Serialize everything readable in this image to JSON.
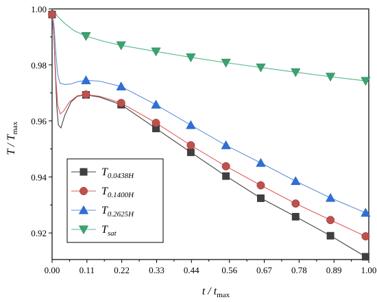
{
  "chart_data": {
    "type": "line",
    "xlabel": {
      "main": "t / t",
      "sub": "max"
    },
    "ylabel": {
      "main": "T / T",
      "sub": "max"
    },
    "xlim": [
      0.0,
      1.0
    ],
    "ylim": [
      0.9105,
      1.0
    ],
    "x_ticks": [
      "0.00",
      "0.11",
      "0.22",
      "0.33",
      "0.44",
      "0.56",
      "0.67",
      "0.78",
      "0.89",
      "1.00"
    ],
    "y_ticks": [
      "0.92",
      "0.94",
      "0.96",
      "0.98",
      "1.00"
    ],
    "grid": false,
    "legend_position": "bottom-left",
    "series": [
      {
        "name_main": "T",
        "name_sub": "0.0438H",
        "marker": "square",
        "color": "#404040",
        "line_color": "#404040",
        "markers": [
          [
            0.0,
            0.998
          ],
          [
            0.107,
            0.9693
          ],
          [
            0.218,
            0.9658
          ],
          [
            0.328,
            0.9573
          ],
          [
            0.438,
            0.9488
          ],
          [
            0.549,
            0.9403
          ],
          [
            0.659,
            0.9324
          ],
          [
            0.769,
            0.9258
          ],
          [
            0.879,
            0.919
          ],
          [
            0.99,
            0.9115
          ]
        ],
        "curve": [
          [
            0.0,
            0.998
          ],
          [
            0.005,
            0.992
          ],
          [
            0.01,
            0.978
          ],
          [
            0.015,
            0.965
          ],
          [
            0.02,
            0.9585
          ],
          [
            0.028,
            0.9575
          ],
          [
            0.04,
            0.962
          ],
          [
            0.06,
            0.9668
          ],
          [
            0.08,
            0.9688
          ],
          [
            0.107,
            0.9693
          ],
          [
            0.15,
            0.9685
          ],
          [
            0.218,
            0.9658
          ],
          [
            0.328,
            0.9573
          ],
          [
            0.438,
            0.9488
          ],
          [
            0.549,
            0.9403
          ],
          [
            0.659,
            0.9324
          ],
          [
            0.769,
            0.9258
          ],
          [
            0.879,
            0.919
          ],
          [
            0.99,
            0.9115
          ]
        ]
      },
      {
        "name_main": "T",
        "name_sub": "0.1400H",
        "marker": "circle",
        "color": "#c0504d",
        "line_color": "#e05a5a",
        "markers": [
          [
            0.0,
            0.998
          ],
          [
            0.107,
            0.9694
          ],
          [
            0.218,
            0.9664
          ],
          [
            0.328,
            0.9593
          ],
          [
            0.438,
            0.9513
          ],
          [
            0.549,
            0.9438
          ],
          [
            0.659,
            0.937
          ],
          [
            0.769,
            0.9305
          ],
          [
            0.879,
            0.9246
          ],
          [
            0.99,
            0.9188
          ]
        ],
        "curve": [
          [
            0.0,
            0.998
          ],
          [
            0.006,
            0.99
          ],
          [
            0.012,
            0.975
          ],
          [
            0.018,
            0.9655
          ],
          [
            0.026,
            0.9625
          ],
          [
            0.036,
            0.9635
          ],
          [
            0.055,
            0.9668
          ],
          [
            0.08,
            0.969
          ],
          [
            0.107,
            0.9694
          ],
          [
            0.15,
            0.9688
          ],
          [
            0.218,
            0.9664
          ],
          [
            0.328,
            0.9593
          ],
          [
            0.438,
            0.9513
          ],
          [
            0.549,
            0.9438
          ],
          [
            0.659,
            0.937
          ],
          [
            0.769,
            0.9305
          ],
          [
            0.879,
            0.9246
          ],
          [
            0.99,
            0.9188
          ]
        ]
      },
      {
        "name_main": "T",
        "name_sub": "0.2625H",
        "marker": "triangle-up",
        "color": "#2f6fd8",
        "line_color": "#5a8ee0",
        "markers": [
          [
            0.107,
            0.9745
          ],
          [
            0.218,
            0.9723
          ],
          [
            0.328,
            0.9658
          ],
          [
            0.438,
            0.9585
          ],
          [
            0.549,
            0.9513
          ],
          [
            0.659,
            0.945
          ],
          [
            0.769,
            0.9385
          ],
          [
            0.879,
            0.9325
          ],
          [
            0.99,
            0.9272
          ]
        ],
        "curve": [
          [
            0.0,
            0.999
          ],
          [
            0.006,
            0.994
          ],
          [
            0.012,
            0.984
          ],
          [
            0.018,
            0.9765
          ],
          [
            0.025,
            0.9735
          ],
          [
            0.04,
            0.973
          ],
          [
            0.06,
            0.9732
          ],
          [
            0.08,
            0.974
          ],
          [
            0.107,
            0.9745
          ],
          [
            0.15,
            0.9742
          ],
          [
            0.218,
            0.9723
          ],
          [
            0.328,
            0.9658
          ],
          [
            0.438,
            0.9585
          ],
          [
            0.549,
            0.9513
          ],
          [
            0.659,
            0.945
          ],
          [
            0.769,
            0.9385
          ],
          [
            0.879,
            0.9325
          ],
          [
            0.99,
            0.9272
          ]
        ]
      },
      {
        "name_main": "T",
        "name_sub": "sat",
        "marker": "triangle-down",
        "color": "#3aa370",
        "line_color": "#4fb884",
        "markers": [
          [
            0.107,
            0.9903
          ],
          [
            0.218,
            0.987
          ],
          [
            0.328,
            0.9848
          ],
          [
            0.438,
            0.9827
          ],
          [
            0.549,
            0.9808
          ],
          [
            0.659,
            0.9791
          ],
          [
            0.769,
            0.9774
          ],
          [
            0.879,
            0.9758
          ],
          [
            0.99,
            0.9743
          ]
        ],
        "curve": [
          [
            0.0,
            1.0
          ],
          [
            0.01,
            0.9985
          ],
          [
            0.02,
            0.997
          ],
          [
            0.04,
            0.9948
          ],
          [
            0.07,
            0.9922
          ],
          [
            0.107,
            0.9903
          ],
          [
            0.16,
            0.9885
          ],
          [
            0.218,
            0.987
          ],
          [
            0.328,
            0.9848
          ],
          [
            0.438,
            0.9827
          ],
          [
            0.549,
            0.9808
          ],
          [
            0.659,
            0.9791
          ],
          [
            0.769,
            0.9774
          ],
          [
            0.879,
            0.9758
          ],
          [
            0.99,
            0.9743
          ]
        ]
      }
    ]
  }
}
